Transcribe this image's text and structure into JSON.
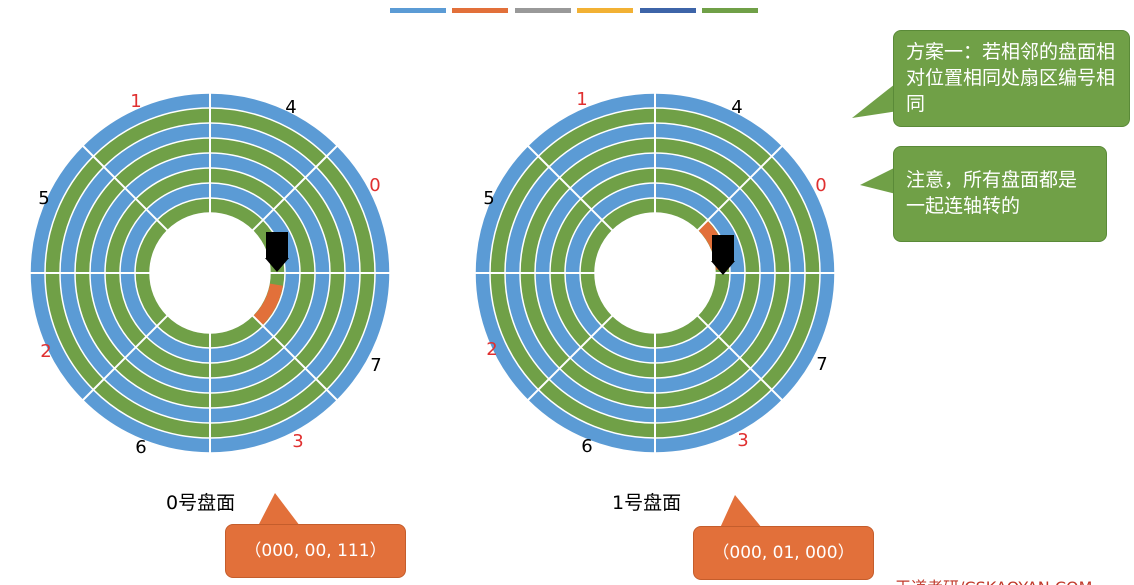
{
  "disks": [
    {
      "sector_labels": [
        "1",
        "4",
        "0",
        "5",
        "2",
        "7",
        "6",
        "3"
      ],
      "name": "0号盘面",
      "address": "（000, 00, 111）"
    },
    {
      "sector_labels": [
        "1",
        "4",
        "0",
        "5",
        "2",
        "7",
        "6",
        "3"
      ],
      "name": "1号盘面",
      "address": "（000, 01, 000）"
    }
  ],
  "callouts": [
    "方案一：若相邻的盘面相对位置相同处扇区编号相同",
    "注意，所有盘面都是一起连轴转的"
  ],
  "watermark": "王道考研/CSKAOYAN.COM"
}
